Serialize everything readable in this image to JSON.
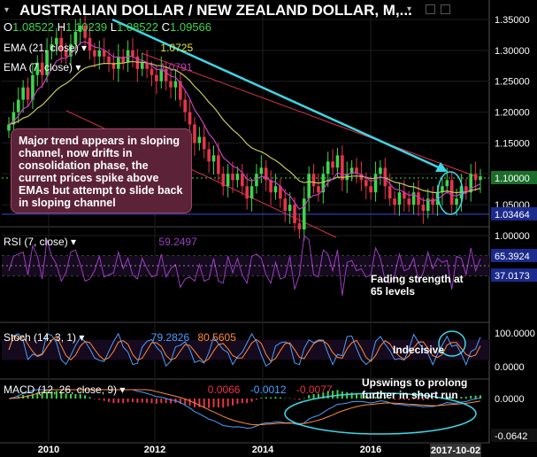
{
  "header": {
    "title": "AUSTRALIAN DOLLAR / NEW ZEALAND DOLLAR, M,...",
    "o_label": "O",
    "o_value": "1.08522",
    "h_label": "H",
    "h_value": "1.10239",
    "l_label": "L",
    "l_value": "1.08522",
    "c_label": "C",
    "c_value": "1.09566"
  },
  "indicators": {
    "ema21_label": "EMA (21, close)",
    "ema21_value": "1.0725",
    "ema7_label": "EMA (7, close)",
    "ema7_value": "1.0791",
    "rsi_label": "RSI (7, close)",
    "rsi_value": "59.2497",
    "stoch_label": "Stoch (14, 3, 1)",
    "stoch_k": "79.2826",
    "stoch_d": "80.5605",
    "macd_label": "MACD (12, 26, close, 9)",
    "macd_a": "0.0066",
    "macd_b": "-0.0012",
    "macd_c": "-0.0077"
  },
  "annotations": {
    "callout": "Major trend appears in sloping channel, now drifts in consolidation phase, the current prices spike above EMAs but attempt to slide back in sloping channel",
    "rsi_note": "Fading strength at 65 levels",
    "stoch_note": "Indecisive",
    "macd_note": "Upswings to prolong further in short run"
  },
  "colors": {
    "up": "#3cd64a",
    "down": "#e8344a",
    "ema21": "#c8c85a",
    "ema7": "#c23fc2",
    "trendline": "#3ed6e6",
    "channel": "#d8324a",
    "rsi": "#9a3fc2",
    "stoch_k": "#4aa0ff",
    "stoch_d": "#ff8a3a",
    "macd": "#4aa0ff",
    "signal": "#ff8a3a",
    "price_box": "#1b2a8c",
    "rsi_box": "#1b2a8c"
  },
  "chart_data": {
    "type": "candlestick",
    "x_axis": {
      "ticks": [
        "2010",
        "2012",
        "2014",
        "2016",
        "2017-10-02"
      ]
    },
    "y_axis": {
      "ticks": [
        "1.35000",
        "1.30000",
        "1.25000",
        "1.20000",
        "1.15000",
        "1.10000",
        "1.05000",
        "1.00000"
      ],
      "range": [
        0.98,
        1.37
      ],
      "marked_level": "1.03464"
    },
    "price_close": [
      1.18,
      1.2,
      1.22,
      1.24,
      1.22,
      1.26,
      1.28,
      1.26,
      1.3,
      1.31,
      1.32,
      1.3,
      1.29,
      1.31,
      1.33,
      1.34,
      1.32,
      1.3,
      1.29,
      1.3,
      1.29,
      1.28,
      1.27,
      1.29,
      1.28,
      1.3,
      1.29,
      1.27,
      1.28,
      1.27,
      1.26,
      1.25,
      1.27,
      1.25,
      1.24,
      1.25,
      1.22,
      1.2,
      1.18,
      1.15,
      1.16,
      1.14,
      1.12,
      1.13,
      1.1,
      1.08,
      1.1,
      1.09,
      1.1,
      1.08,
      1.06,
      1.08,
      1.1,
      1.11,
      1.09,
      1.07,
      1.08,
      1.06,
      1.04,
      1.05,
      1.02,
      1.01,
      1.06,
      1.1,
      1.08,
      1.07,
      1.1,
      1.12,
      1.11,
      1.13,
      1.09,
      1.1,
      1.11,
      1.1,
      1.09,
      1.08,
      1.07,
      1.1,
      1.11,
      1.08,
      1.06,
      1.05,
      1.07,
      1.06,
      1.05,
      1.07,
      1.05,
      1.04,
      1.06,
      1.05,
      1.07,
      1.08,
      1.09,
      1.05,
      1.06,
      1.08,
      1.07,
      1.1,
      1.09,
      1.096
    ],
    "ema21_marker": "1.0725",
    "ema7_marker": "1.0791",
    "rsi": {
      "levels": [
        "65.3924",
        "37.0173"
      ],
      "current": "59.2497"
    },
    "stoch": {
      "ticks": [
        "100.0000",
        "0.0000"
      ],
      "k": "79.2826",
      "d": "80.5605"
    },
    "macd": {
      "ticks": [
        "0.0000",
        "-0.0642"
      ],
      "macd": "0.0066",
      "signal": "-0.0012",
      "hist": "-0.0077"
    }
  }
}
